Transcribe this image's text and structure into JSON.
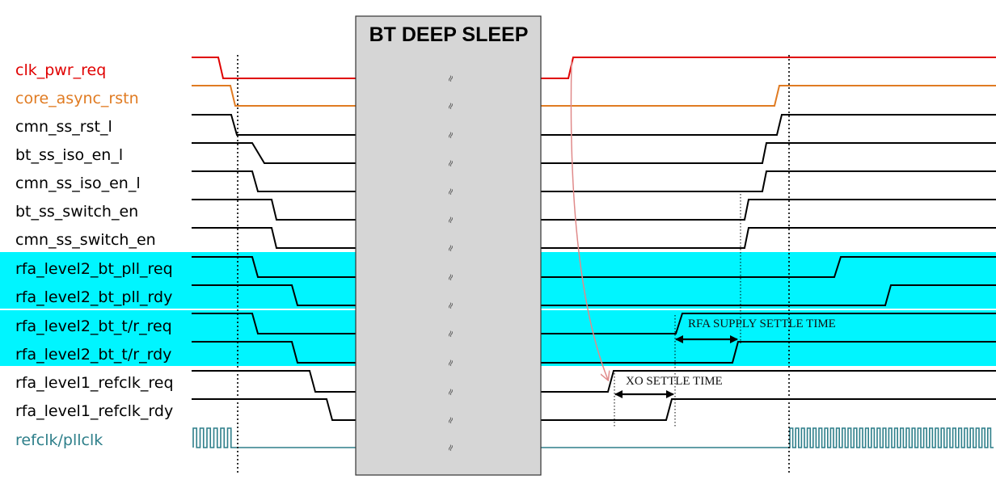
{
  "diagram": {
    "title": "BT DEEP SLEEP",
    "break_mark": "≈",
    "highlight_color": "#00f5ff",
    "sleep_fill": "#d6d6d6",
    "signals": [
      {
        "name": "clk_pwr_req",
        "color": "#e00000"
      },
      {
        "name": "core_async_rstn",
        "color": "#e07b22"
      },
      {
        "name": "cmn_ss_rst_l",
        "color": "#000000"
      },
      {
        "name": "bt_ss_iso_en_l",
        "color": "#000000"
      },
      {
        "name": "cmn_ss_iso_en_l",
        "color": "#000000"
      },
      {
        "name": "bt_ss_switch_en",
        "color": "#000000"
      },
      {
        "name": "cmn_ss_switch_en",
        "color": "#000000"
      },
      {
        "name": "rfa_level2_bt_pll_req",
        "color": "#000000"
      },
      {
        "name": "rfa_level2_bt_pll_rdy",
        "color": "#000000"
      },
      {
        "name": "rfa_level2_bt_t/r_req",
        "color": "#000000"
      },
      {
        "name": "rfa_level2_bt_t/r_rdy",
        "color": "#000000"
      },
      {
        "name": "rfa_level1_refclk_req",
        "color": "#000000"
      },
      {
        "name": "rfa_level1_refclk_rdy",
        "color": "#000000"
      },
      {
        "name": "refclk/pllclk",
        "color": "#2e7f8a"
      }
    ],
    "annotations": {
      "rfa_supply": "RFA SUPPLY SETTLE TIME",
      "xo_settle": "XO SETTLE TIME"
    }
  }
}
